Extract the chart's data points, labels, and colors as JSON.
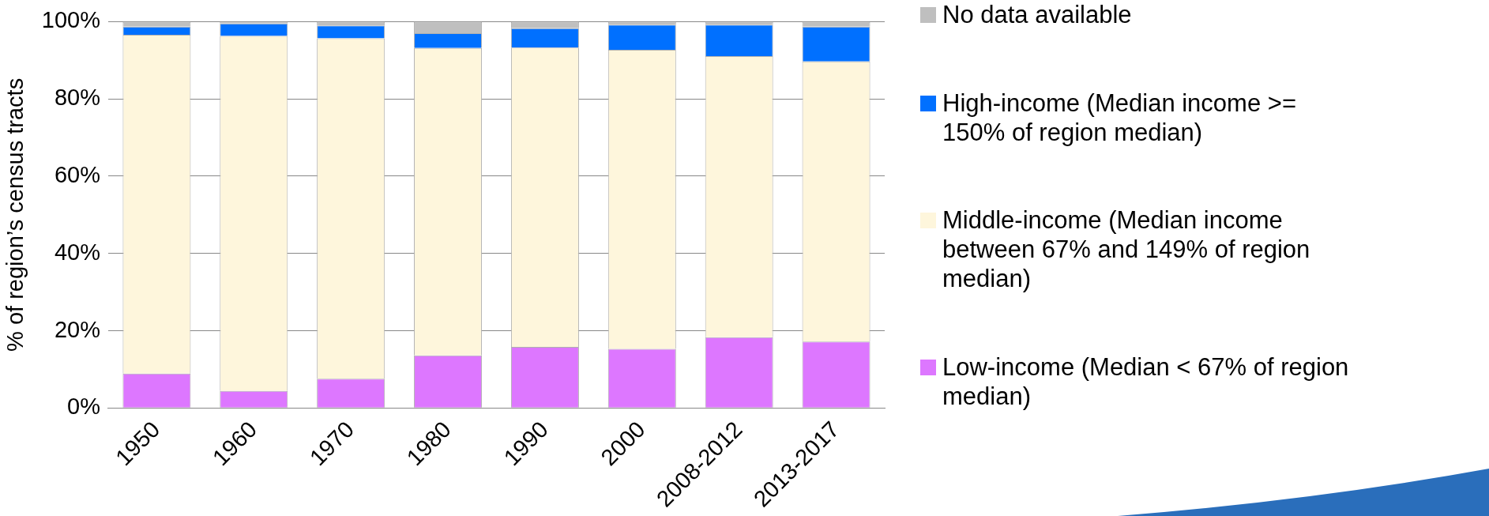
{
  "chart_data": {
    "type": "bar",
    "stacked": true,
    "ylabel": "% of region’s census tracts",
    "categories": [
      "1950",
      "1960",
      "1970",
      "1980",
      "1990",
      "2000",
      "2008-2012",
      "2013-2017"
    ],
    "series": [
      {
        "name": "Low-income (Median < 67% of region median)",
        "color": "#dd77ff",
        "values": [
          8.9,
          4.4,
          7.6,
          13.6,
          15.8,
          15.3,
          18.3,
          17.2
        ]
      },
      {
        "name": "Middle-income (Median income between 67% and 149% of region median)",
        "color": "#fef6dc",
        "values": [
          87.7,
          91.9,
          88.1,
          79.6,
          77.5,
          77.4,
          72.8,
          72.5
        ]
      },
      {
        "name": "High-income (Median income >= 150% of region median)",
        "color": "#0070ff",
        "values": [
          2.1,
          3.2,
          3.3,
          3.8,
          5.0,
          6.5,
          8.1,
          9.0
        ]
      },
      {
        "name": "No data available",
        "color": "#bfbfbf",
        "values": [
          1.3,
          0.5,
          1.0,
          3.0,
          1.7,
          0.8,
          0.8,
          1.3
        ]
      }
    ],
    "ylim": [
      0,
      100
    ],
    "yticks": [
      {
        "value": 0,
        "label": "0%"
      },
      {
        "value": 20,
        "label": "20%"
      },
      {
        "value": 40,
        "label": "40%"
      },
      {
        "value": 60,
        "label": "60%"
      },
      {
        "value": 80,
        "label": "80%"
      },
      {
        "value": 100,
        "label": "100%"
      }
    ],
    "grid": "y",
    "legend": "right"
  }
}
